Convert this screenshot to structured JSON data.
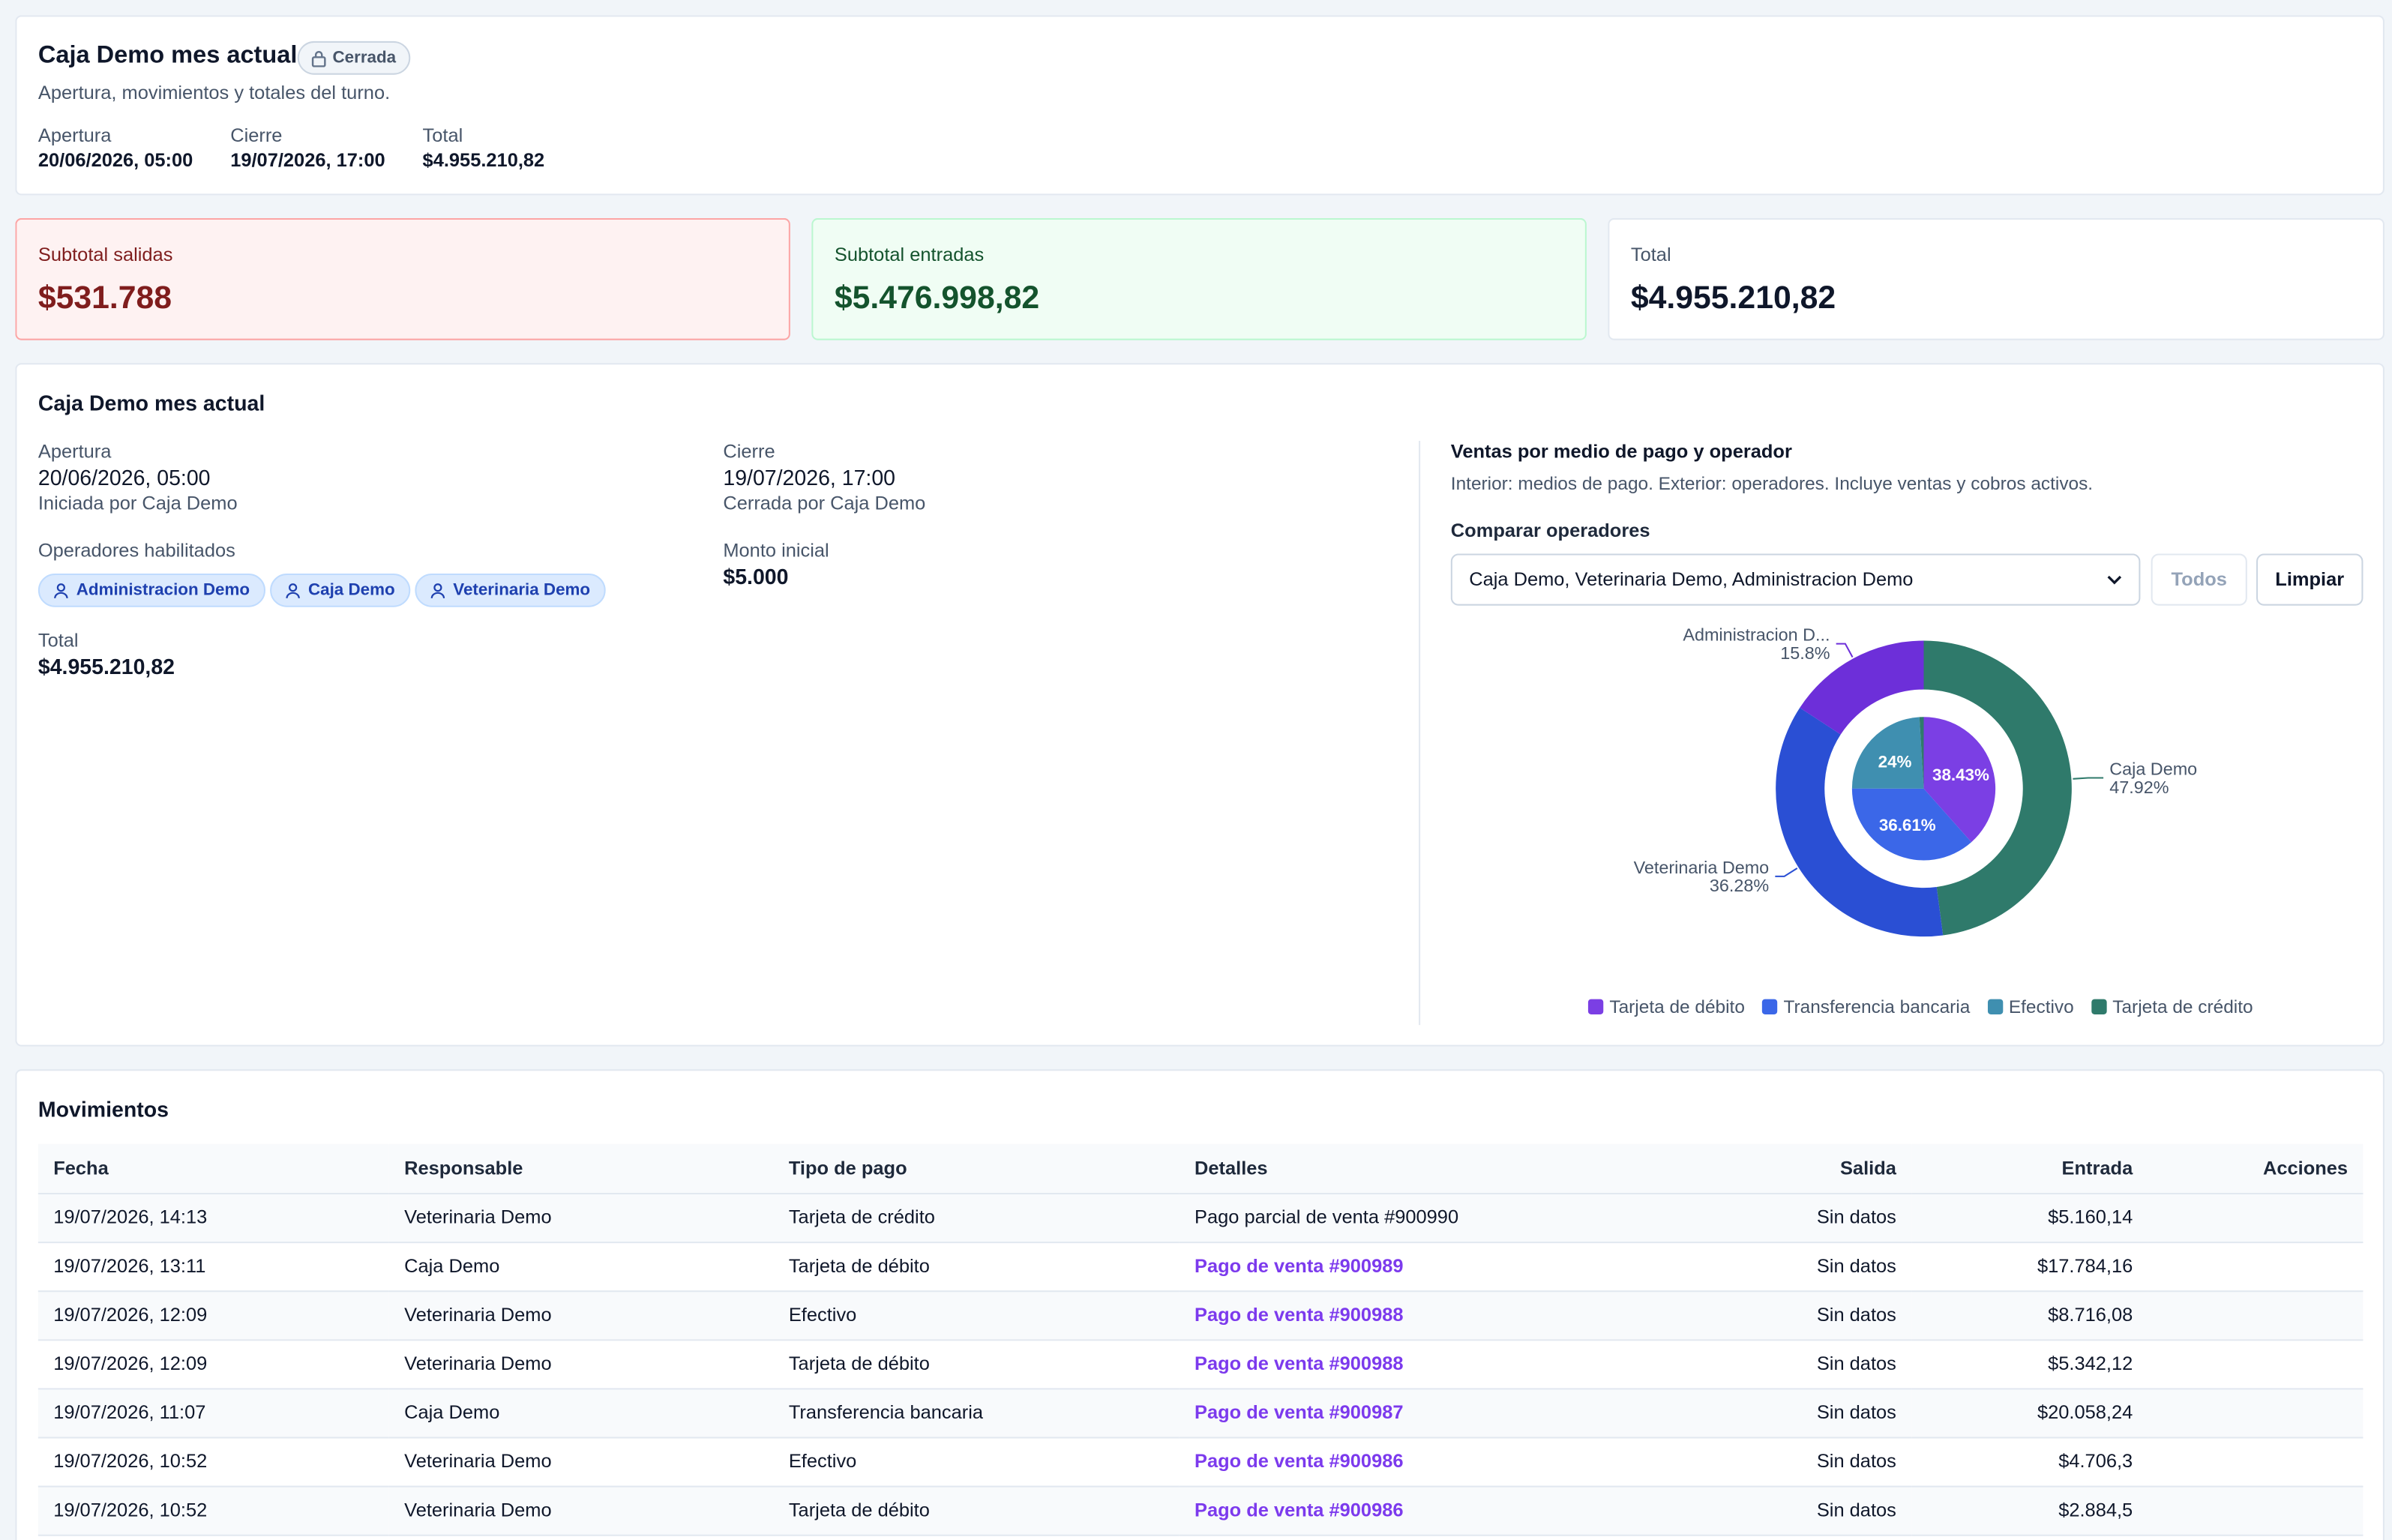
{
  "header": {
    "title": "Caja Demo mes actual",
    "status_badge": "Cerrada",
    "subtitle": "Apertura, movimientos y totales del turno.",
    "apertura_label": "Apertura",
    "apertura_value": "20/06/2026, 05:00",
    "cierre_label": "Cierre",
    "cierre_value": "19/07/2026, 17:00",
    "total_label": "Total",
    "total_value": "$4.955.210,82"
  },
  "stats": {
    "salidas_label": "Subtotal salidas",
    "salidas_value": "$531.788",
    "entradas_label": "Subtotal entradas",
    "entradas_value": "$5.476.998,82",
    "total_label": "Total",
    "total_value": "$4.955.210,82"
  },
  "detail": {
    "title": "Caja Demo mes actual",
    "apertura_label": "Apertura",
    "apertura_value": "20/06/2026, 05:00",
    "apertura_by": "Iniciada por Caja Demo",
    "cierre_label": "Cierre",
    "cierre_value": "19/07/2026, 17:00",
    "cierre_by": "Cerrada por Caja Demo",
    "operators_label": "Operadores habilitados",
    "operators": [
      "Administracion Demo",
      "Caja Demo",
      "Veterinaria Demo"
    ],
    "monto_label": "Monto inicial",
    "monto_value": "$5.000",
    "total_label": "Total",
    "total_value": "$4.955.210,82"
  },
  "chart_panel": {
    "title": "Ventas por medio de pago y operador",
    "subtitle": "Interior: medios de pago. Exterior: operadores. Incluye ventas y cobros activos.",
    "compare_label": "Comparar operadores",
    "select_value": "Caja Demo, Veterinaria Demo, Administracion Demo",
    "btn_all": "Todos",
    "btn_clear": "Limpiar"
  },
  "chart_data": {
    "type": "pie",
    "outer_series": {
      "slices": [
        {
          "label": "Caja Demo",
          "pct_label": "47.92%",
          "value": 47.92,
          "color": "#2f7a6b"
        },
        {
          "label": "Veterinaria Demo",
          "pct_label": "36.28%",
          "value": 36.28,
          "color": "#2a4fd4"
        },
        {
          "label": "Administracion D...",
          "pct_label": "15.8%",
          "value": 15.8,
          "color": "#6d2fd9"
        }
      ]
    },
    "inner_series": {
      "slices": [
        {
          "label": "Tarjeta de débito",
          "pct_label": "38.43%",
          "value": 38.43,
          "color": "#7b3fe4"
        },
        {
          "label": "Transferencia bancaria",
          "pct_label": "36.61%",
          "value": 36.61,
          "color": "#3b67e8"
        },
        {
          "label": "Efectivo",
          "pct_label": "24%",
          "value": 24,
          "color": "#3f8fb0"
        },
        {
          "label": "Tarjeta de crédito",
          "pct_label": "",
          "value": 0.96,
          "color": "#2f7a6b"
        }
      ]
    },
    "legend": [
      {
        "label": "Tarjeta de débito",
        "color": "#7b3fe4"
      },
      {
        "label": "Transferencia bancaria",
        "color": "#3b67e8"
      },
      {
        "label": "Efectivo",
        "color": "#3f8fb0"
      },
      {
        "label": "Tarjeta de crédito",
        "color": "#2f7a6b"
      }
    ]
  },
  "movements": {
    "title": "Movimientos",
    "columns": [
      "Fecha",
      "Responsable",
      "Tipo de pago",
      "Detalles",
      "Salida",
      "Entrada",
      "Acciones"
    ],
    "rows": [
      {
        "fecha": "19/07/2026, 14:13",
        "resp": "Veterinaria Demo",
        "tipo": "Tarjeta de crédito",
        "det": "Pago parcial de venta #900990",
        "link": false,
        "sal": "Sin datos",
        "ent": "$5.160,14"
      },
      {
        "fecha": "19/07/2026, 13:11",
        "resp": "Caja Demo",
        "tipo": "Tarjeta de débito",
        "det": "Pago de venta #900989",
        "link": true,
        "sal": "Sin datos",
        "ent": "$17.784,16"
      },
      {
        "fecha": "19/07/2026, 12:09",
        "resp": "Veterinaria Demo",
        "tipo": "Efectivo",
        "det": "Pago de venta #900988",
        "link": true,
        "sal": "Sin datos",
        "ent": "$8.716,08"
      },
      {
        "fecha": "19/07/2026, 12:09",
        "resp": "Veterinaria Demo",
        "tipo": "Tarjeta de débito",
        "det": "Pago de venta #900988",
        "link": true,
        "sal": "Sin datos",
        "ent": "$5.342,12"
      },
      {
        "fecha": "19/07/2026, 11:07",
        "resp": "Caja Demo",
        "tipo": "Transferencia bancaria",
        "det": "Pago de venta #900987",
        "link": true,
        "sal": "Sin datos",
        "ent": "$20.058,24"
      },
      {
        "fecha": "19/07/2026, 10:52",
        "resp": "Veterinaria Demo",
        "tipo": "Efectivo",
        "det": "Pago de venta #900986",
        "link": true,
        "sal": "Sin datos",
        "ent": "$4.706,3"
      },
      {
        "fecha": "19/07/2026, 10:52",
        "resp": "Veterinaria Demo",
        "tipo": "Tarjeta de débito",
        "det": "Pago de venta #900986",
        "link": true,
        "sal": "Sin datos",
        "ent": "$2.884,5"
      }
    ]
  }
}
